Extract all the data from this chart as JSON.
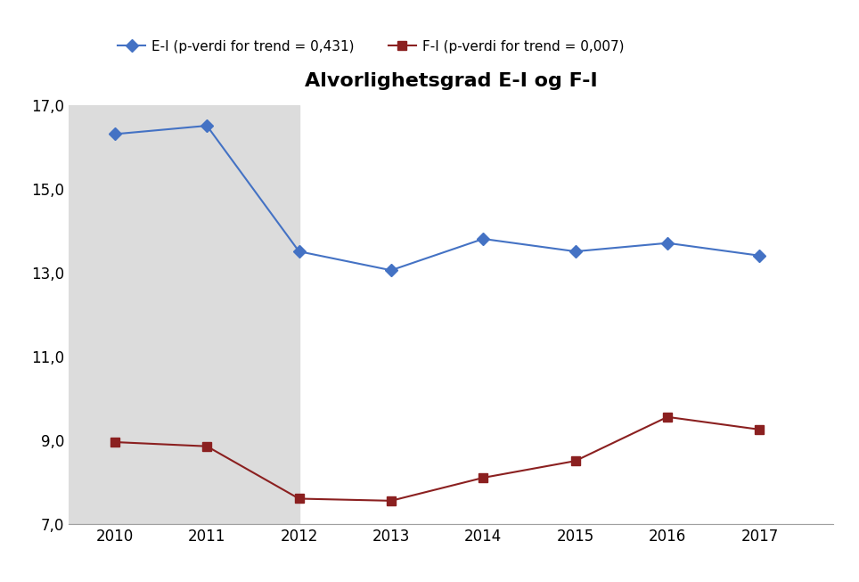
{
  "title": "Alvorlighetsgrad E-I og F-I",
  "years": [
    2010,
    2011,
    2012,
    2013,
    2014,
    2015,
    2016,
    2017
  ],
  "ei_values": [
    16.3,
    16.5,
    13.5,
    13.05,
    13.8,
    13.5,
    13.7,
    13.4
  ],
  "fi_values": [
    8.95,
    8.85,
    7.6,
    7.55,
    8.1,
    8.5,
    9.55,
    9.25
  ],
  "ei_color": "#4472C4",
  "fi_color": "#8B2020",
  "ei_label": "E-I (p-verdi for trend = 0,431)",
  "fi_label": "F-I (p-verdi for trend = 0,007)",
  "ylim_min": 7.0,
  "ylim_max": 17.0,
  "yticks": [
    7.0,
    9.0,
    11.0,
    13.0,
    15.0,
    17.0
  ],
  "ytick_labels": [
    "7,0",
    "9,0",
    "11,0",
    "13,0",
    "15,0",
    "17,0"
  ],
  "shaded_region_start": 2010,
  "shaded_region_end": 2012,
  "shaded_color": "#DCDCDC",
  "background_color": "#FFFFFF",
  "xlim_min": 2009.5,
  "xlim_max": 2017.8
}
